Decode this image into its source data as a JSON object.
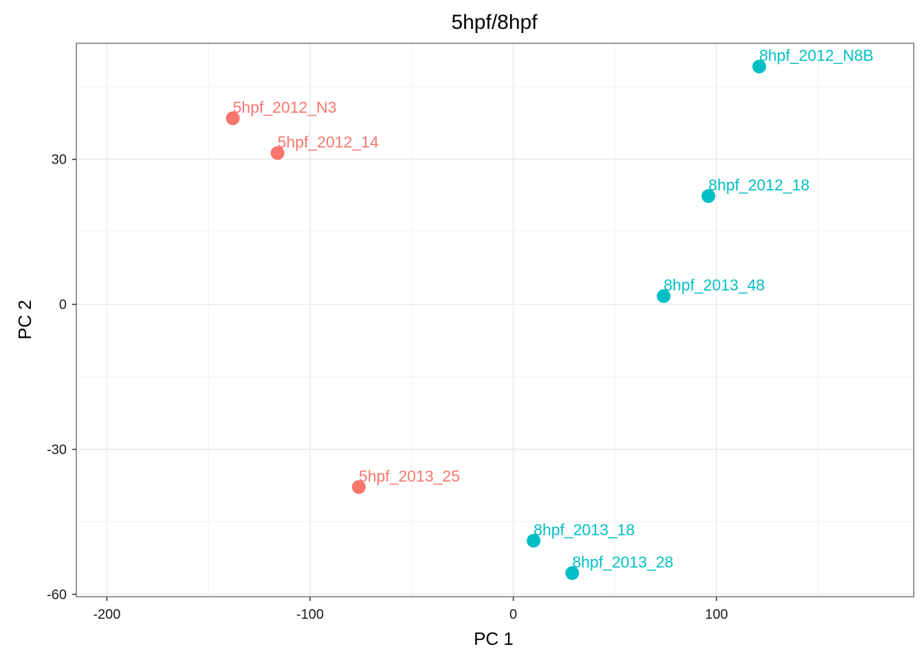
{
  "chart_data": {
    "type": "scatter",
    "title": "5hpf/8hpf",
    "xlabel": "PC 1",
    "ylabel": "PC 2",
    "xlim": [
      -215,
      197
    ],
    "ylim": [
      -60.5,
      54
    ],
    "x_ticks": [
      -200,
      -100,
      0,
      100
    ],
    "x_tick_labels": [
      "-200",
      "-100",
      "0",
      "100"
    ],
    "y_ticks": [
      -60,
      -30,
      0,
      30
    ],
    "y_tick_labels": [
      "-60",
      "-30",
      "0",
      "30"
    ],
    "grid": true,
    "legend": "none",
    "groups": [
      {
        "color": "#F8766D",
        "points": [
          {
            "label": "5hpf_2012_N3",
            "x": -138,
            "y": 38.5
          },
          {
            "label": "5hpf_2012_14",
            "x": -116,
            "y": 31.3
          },
          {
            "label": "5hpf_2013_25",
            "x": -76,
            "y": -37.8
          }
        ]
      },
      {
        "color": "#00BFC4",
        "points": [
          {
            "label": "8hpf_2012_N8B",
            "x": 121,
            "y": 49.2
          },
          {
            "label": "8hpf_2012_18",
            "x": 96,
            "y": 22.4
          },
          {
            "label": "8hpf_2013_48",
            "x": 74,
            "y": 1.7
          },
          {
            "label": "8hpf_2013_18",
            "x": 10,
            "y": -48.9
          },
          {
            "label": "8hpf_2013_28",
            "x": 29,
            "y": -55.6
          }
        ]
      }
    ]
  }
}
